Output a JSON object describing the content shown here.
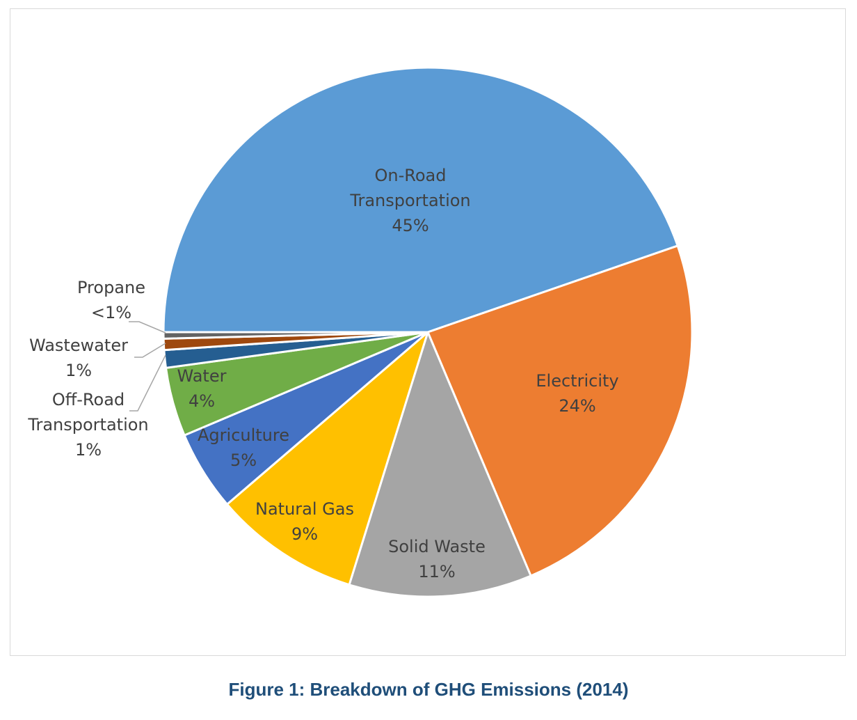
{
  "chart_data": {
    "type": "pie",
    "title": "",
    "start_angle_deg": 180,
    "direction": "clockwise",
    "slices": [
      {
        "name": "On-Road Transportation",
        "label_lines": [
          "On-Road",
          "Transportation"
        ],
        "percent_label": "45%",
        "value": 45.6,
        "color": "#5b9bd5"
      },
      {
        "name": "Electricity",
        "label_lines": [
          "Electricity"
        ],
        "percent_label": "24%",
        "value": 24.4,
        "color": "#ed7d31"
      },
      {
        "name": "Solid Waste",
        "label_lines": [
          "Solid Waste"
        ],
        "percent_label": "11%",
        "value": 11.4,
        "color": "#a5a5a5"
      },
      {
        "name": "Natural Gas",
        "label_lines": [
          "Natural Gas"
        ],
        "percent_label": "9%",
        "value": 9.1,
        "color": "#ffc000"
      },
      {
        "name": "Agriculture",
        "label_lines": [
          "Agriculture"
        ],
        "percent_label": "5%",
        "value": 5.0,
        "color": "#4472c4"
      },
      {
        "name": "Water",
        "label_lines": [
          "Water"
        ],
        "percent_label": "4%",
        "value": 4.3,
        "color": "#70ad47"
      },
      {
        "name": "Off-Road Transportation",
        "label_lines": [
          "Off-Road",
          "Transportation"
        ],
        "percent_label": "1%",
        "value": 1.1,
        "color": "#255e91"
      },
      {
        "name": "Wastewater",
        "label_lines": [
          "Wastewater"
        ],
        "percent_label": "1%",
        "value": 0.7,
        "color": "#9e480e"
      },
      {
        "name": "Propane",
        "label_lines": [
          "Propane"
        ],
        "percent_label": "<1%",
        "value": 0.4,
        "color": "#636363"
      }
    ]
  },
  "caption": "Figure 1: Breakdown of GHG Emissions (2014)"
}
